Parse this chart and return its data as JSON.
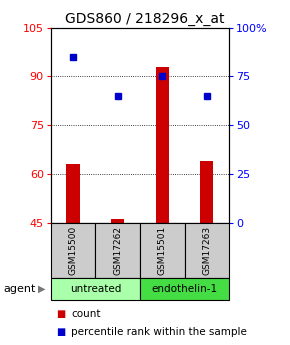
{
  "title": "GDS860 / 218296_x_at",
  "samples": [
    "GSM15500",
    "GSM17262",
    "GSM15501",
    "GSM17263"
  ],
  "bar_values": [
    63,
    46,
    93,
    64
  ],
  "percentile_values": [
    85,
    65,
    75,
    65
  ],
  "ylim_left": [
    45,
    105
  ],
  "ylim_right": [
    0,
    100
  ],
  "yticks_left": [
    45,
    60,
    75,
    90,
    105
  ],
  "yticks_right": [
    0,
    25,
    50,
    75,
    100
  ],
  "bar_color": "#cc0000",
  "percentile_color": "#0000cc",
  "grid_yticks": [
    60,
    75,
    90
  ],
  "groups": [
    {
      "label": "untreated",
      "indices": [
        0,
        1
      ],
      "color": "#aaffaa"
    },
    {
      "label": "endothelin-1",
      "indices": [
        2,
        3
      ],
      "color": "#44dd44"
    }
  ],
  "agent_label": "agent",
  "legend_items": [
    {
      "label": "count",
      "color": "#cc0000"
    },
    {
      "label": "percentile rank within the sample",
      "color": "#0000cc"
    }
  ],
  "sample_box_color": "#cccccc",
  "title_fontsize": 10,
  "tick_fontsize": 8,
  "legend_fontsize": 7.5
}
